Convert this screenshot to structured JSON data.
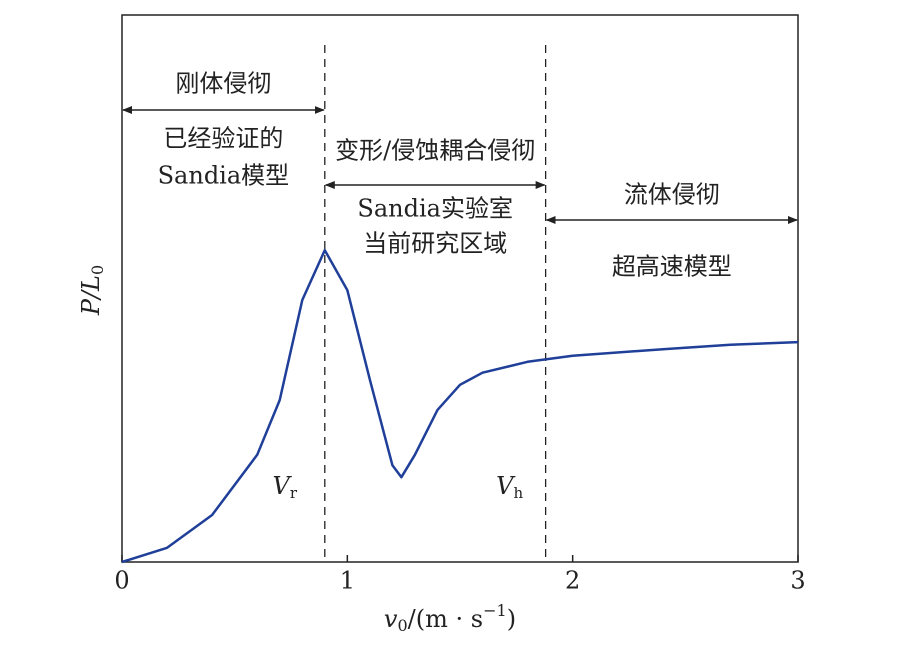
{
  "chart_data": {
    "type": "line",
    "x": [
      0,
      0.2,
      0.4,
      0.6,
      0.7,
      0.8,
      0.9,
      1.0,
      1.1,
      1.2,
      1.24,
      1.3,
      1.4,
      1.5,
      1.6,
      1.8,
      2.0,
      2.4,
      2.7,
      3.0
    ],
    "series": [
      {
        "color": "#1f3f99",
        "values": [
          0,
          0.026,
          0.086,
          0.196,
          0.296,
          0.479,
          0.57,
          0.497,
          0.333,
          0.177,
          0.155,
          0.196,
          0.278,
          0.324,
          0.346,
          0.366,
          0.377,
          0.389,
          0.397,
          0.402
        ]
      }
    ],
    "xlim": [
      0,
      3
    ],
    "xticks": [
      0,
      1,
      2,
      3
    ],
    "ylim": [
      0,
      1
    ],
    "xlabel": [
      "v",
      "0",
      "/(m · s",
      "−1",
      ")"
    ],
    "ylabel": [
      "P/L",
      "0"
    ],
    "vlines": [
      {
        "x": 0.9,
        "symbol": "V",
        "subscript": "r"
      },
      {
        "x": 1.88,
        "symbol": "V",
        "subscript": "h"
      }
    ],
    "regions": [
      {
        "x": [
          0,
          0.9
        ],
        "title": "刚体侵彻",
        "text": [
          "已经验证的",
          "Sandia模型"
        ]
      },
      {
        "x": [
          0.9,
          1.88
        ],
        "title": "变形/侵蚀耦合侵彻",
        "text": [
          "Sandia实验室",
          "当前研究区域"
        ]
      },
      {
        "x": [
          1.88,
          3
        ],
        "title": "流体侵彻",
        "text": [
          "超高速模型"
        ]
      }
    ]
  }
}
